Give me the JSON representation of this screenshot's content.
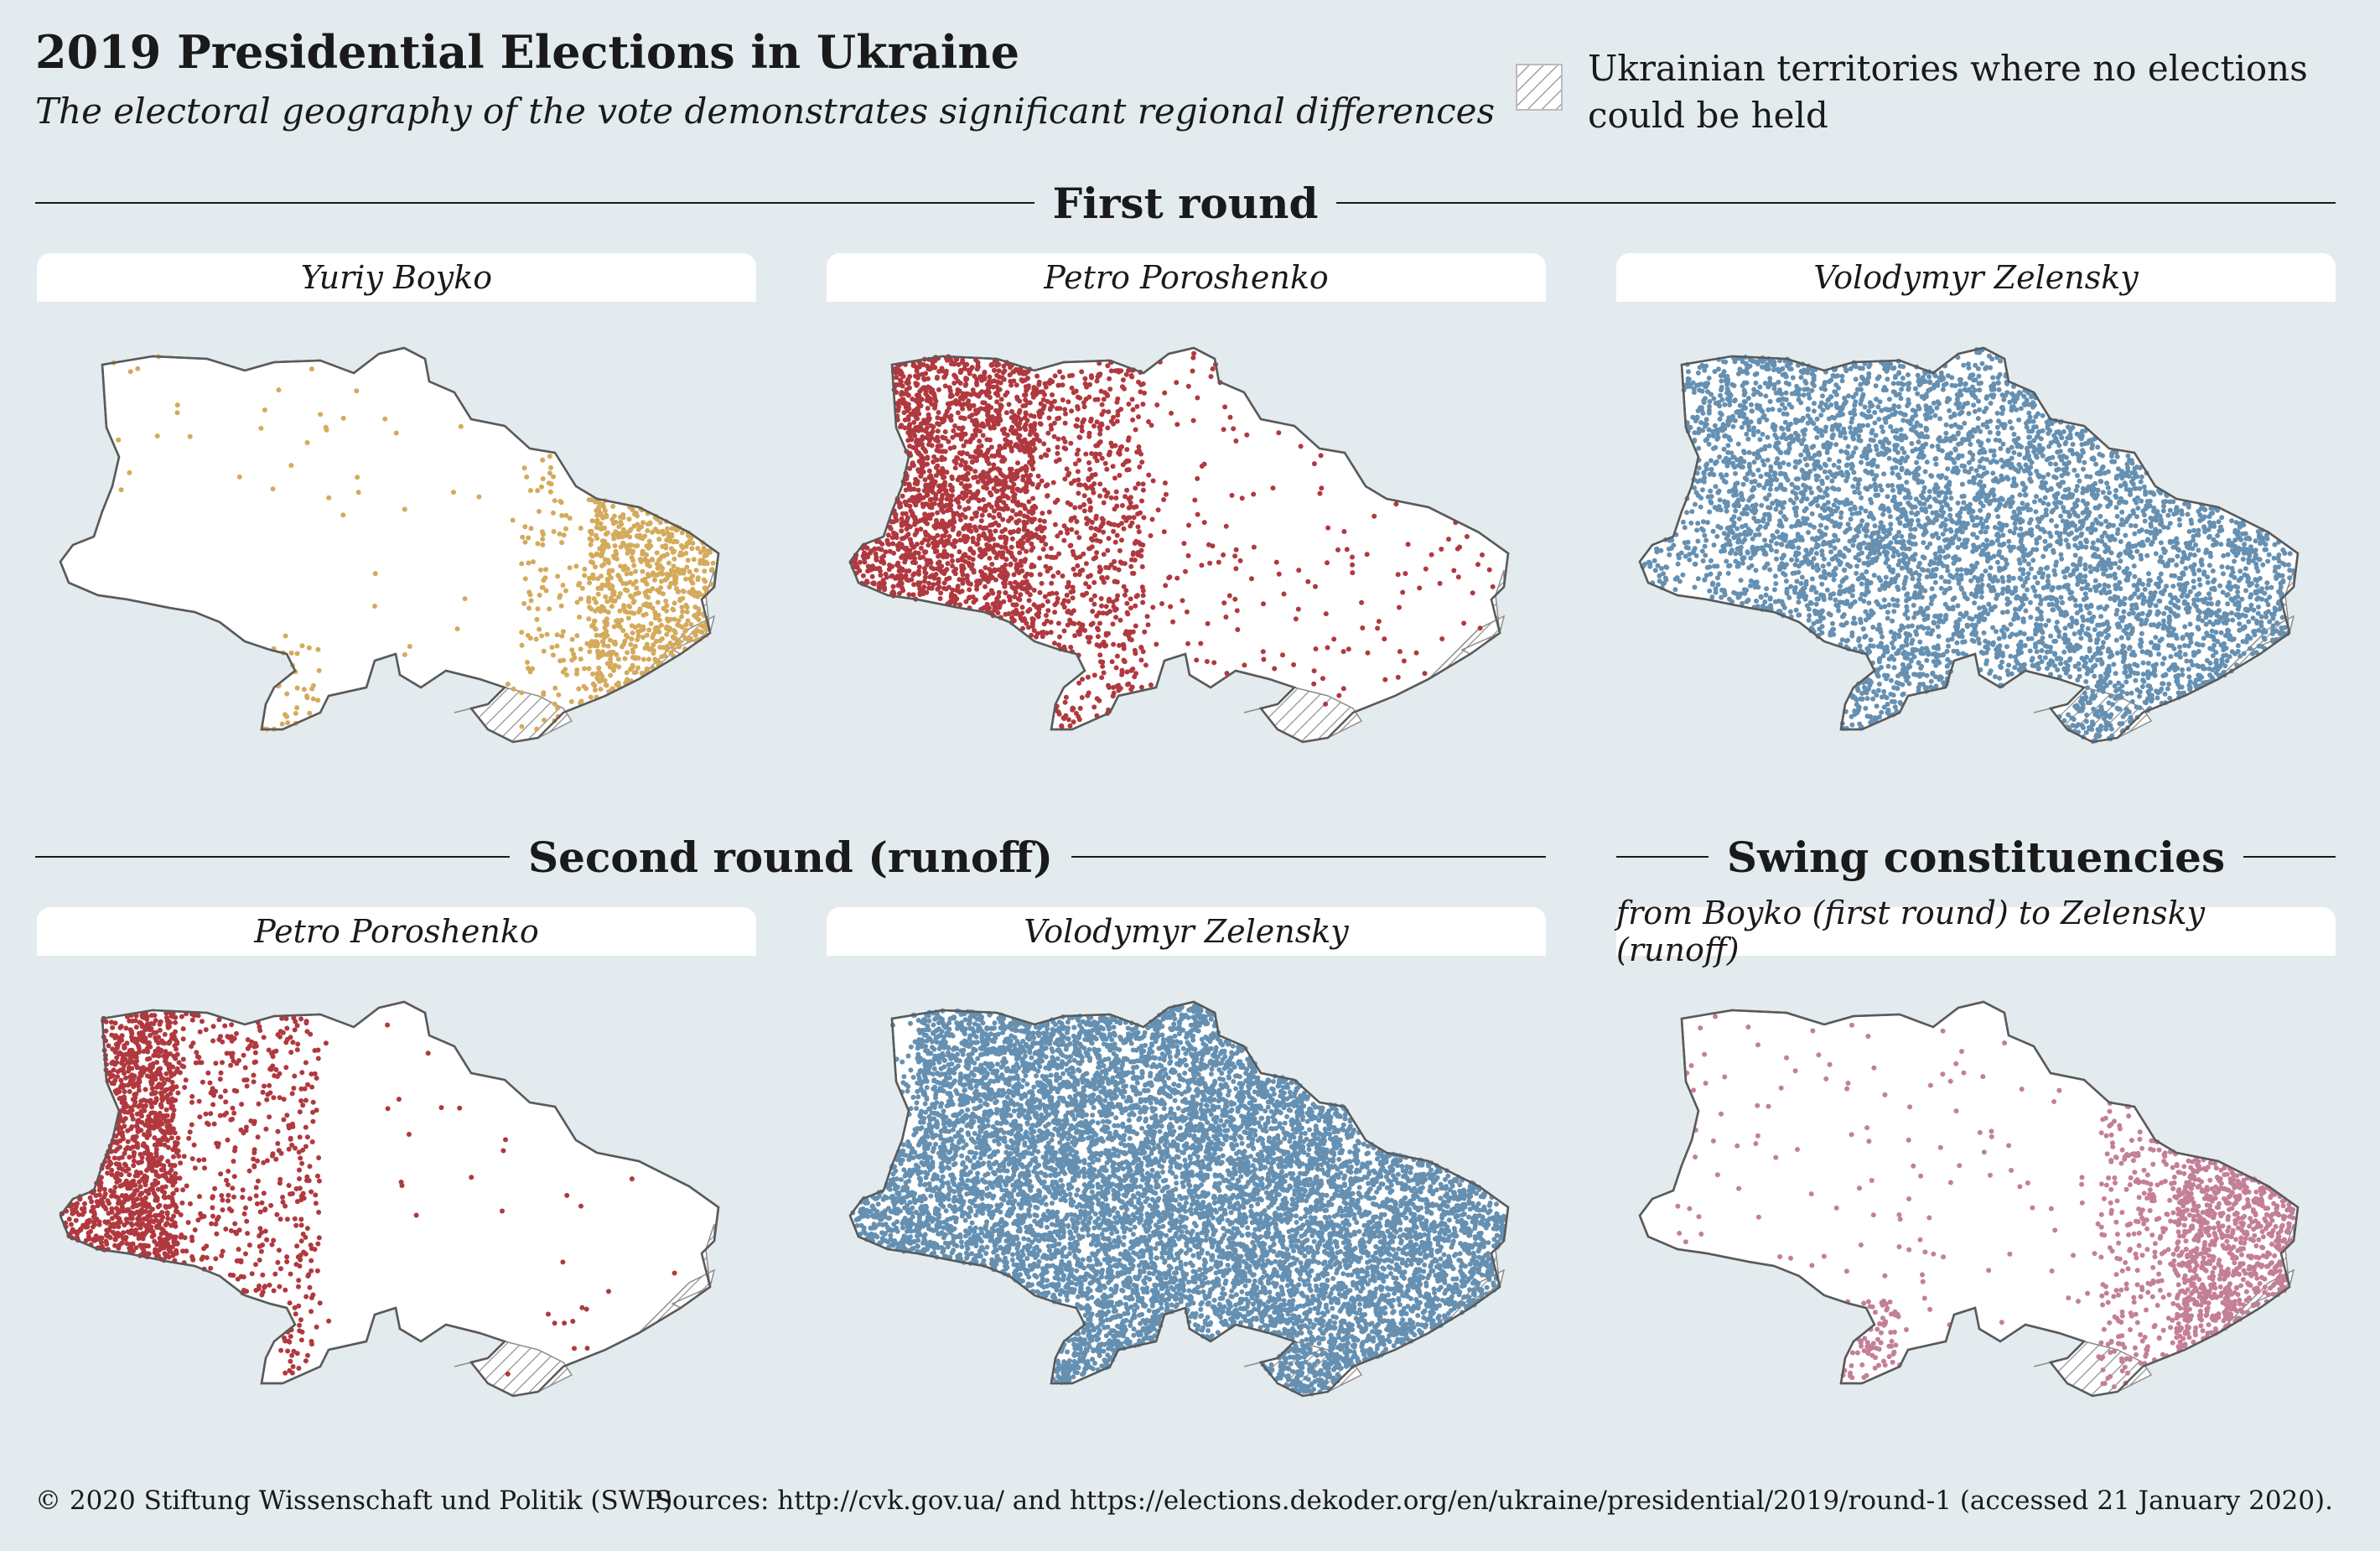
{
  "header": {
    "title": "2019 Presidential Elections in Ukraine",
    "subtitle": "The electoral geography of the vote demonstrates significant regional differences"
  },
  "legend": {
    "no_election_label": "Ukrainian territories where no elections could be held"
  },
  "sections": {
    "first_round": "First round",
    "second_round": "Second round (runoff)",
    "swing": "Swing constituencies"
  },
  "maps": [
    {
      "title": "Yuriy Boyko",
      "color": "#d4aa5c",
      "pattern": "boyko"
    },
    {
      "title": "Petro Poroshenko",
      "color": "#b0393f",
      "pattern": "poro1"
    },
    {
      "title": "Volodymyr Zelensky",
      "color": "#6690b1",
      "pattern": "zel1"
    },
    {
      "title": "Petro Poroshenko",
      "color": "#b0393f",
      "pattern": "poro2"
    },
    {
      "title": "Volodymyr Zelensky",
      "color": "#6690b1",
      "pattern": "zel2"
    },
    {
      "title": "from Boyko (first round) to Zelensky (runoff)",
      "color": "#c47f98",
      "pattern": "swing"
    }
  ],
  "footer": {
    "copyright": "© 2020 Stiftung Wissenschaft und Politik (SWP)",
    "sources": "Sources: http://cvk.gov.ua/ and https://elections.dekoder.org/en/ukraine/presidential/2019/round-1 (accessed 21 January 2020)."
  }
}
